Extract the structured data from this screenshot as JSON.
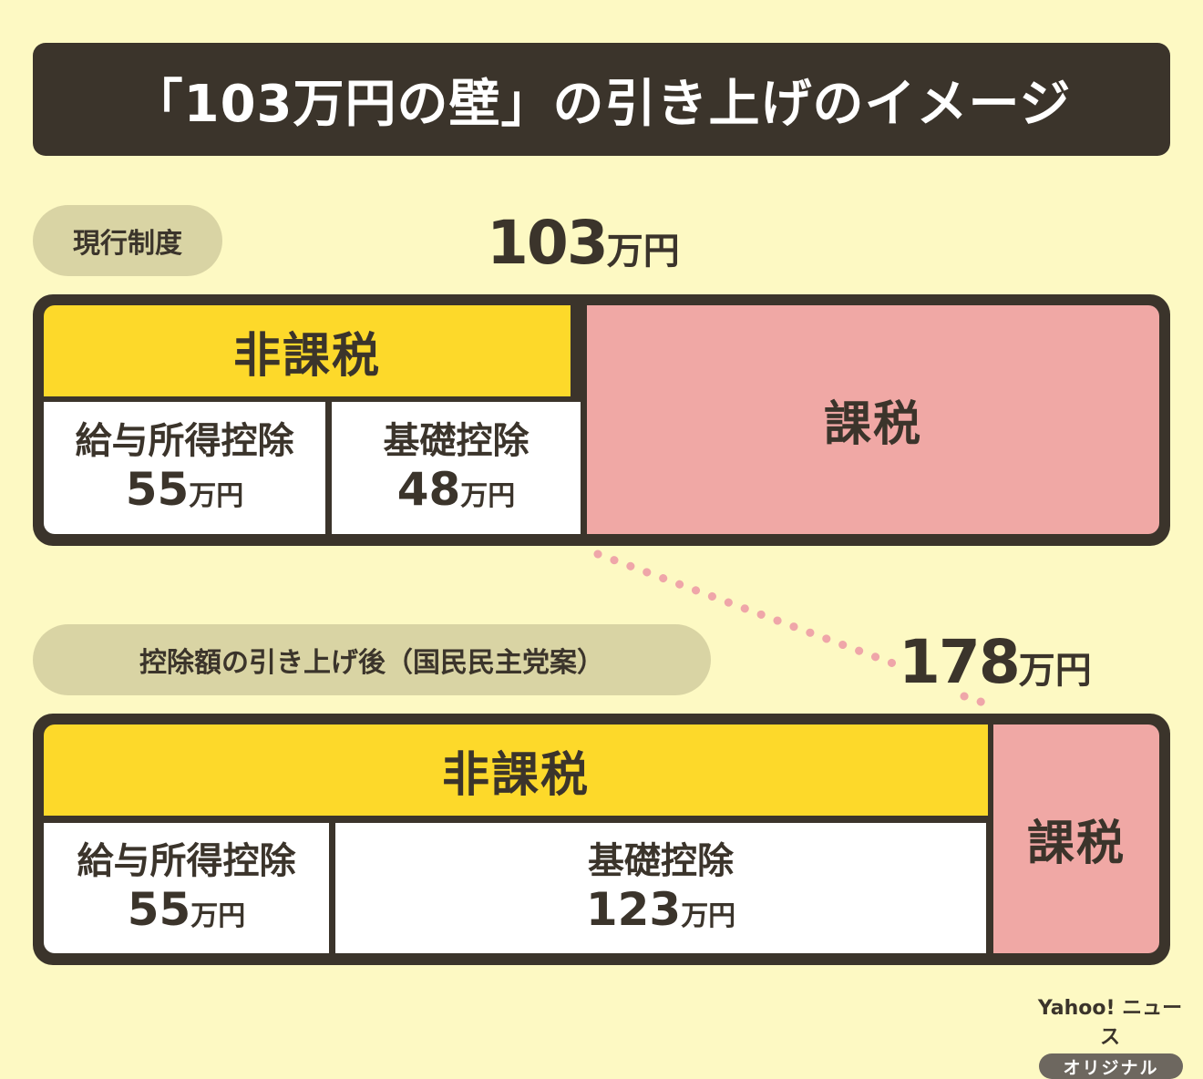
{
  "title": "「103万円の壁」の引き上げのイメージ",
  "current": {
    "label": "現行制度",
    "threshold_value": "103",
    "threshold_unit": "万円",
    "nontax_label": "非課税",
    "tax_label": "課税",
    "deductions": [
      {
        "label": "給与所得控除",
        "value": "55",
        "unit": "万円"
      },
      {
        "label": "基礎控除",
        "value": "48",
        "unit": "万円"
      }
    ]
  },
  "proposed": {
    "label": "控除額の引き上げ後（国民民主党案）",
    "threshold_value": "178",
    "threshold_unit": "万円",
    "nontax_label": "非課税",
    "tax_label": "課税",
    "deductions": [
      {
        "label": "給与所得控除",
        "value": "55",
        "unit": "万円"
      },
      {
        "label": "基礎控除",
        "value": "123",
        "unit": "万円"
      }
    ]
  },
  "brand": {
    "name": "Yahoo! ニュース",
    "badge": "オリジナル"
  },
  "colors": {
    "dark": "#3b342b",
    "nontax": "#fdd92a",
    "tax": "#f0a8a5",
    "deduction": "#ffffff",
    "background": "#fdf9c3",
    "dots": "#efa6a9"
  }
}
